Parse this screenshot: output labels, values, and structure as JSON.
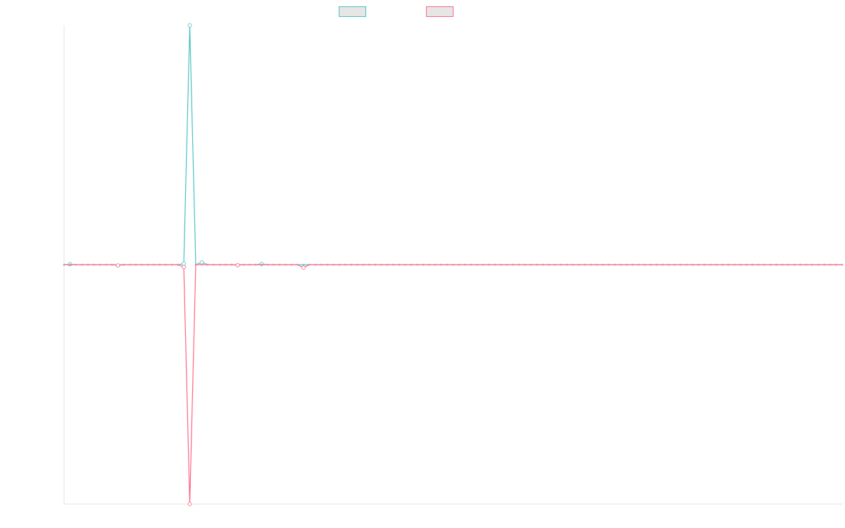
{
  "chart_data": {
    "type": "line",
    "title": "",
    "xlabel": "",
    "ylabel": "",
    "grid": false,
    "legend_position": "top-center",
    "ylim": [
      -1,
      1
    ],
    "x": [
      0,
      1,
      2,
      3,
      4,
      5,
      6,
      7,
      8,
      9,
      10,
      11,
      12,
      13,
      14,
      15,
      16,
      17,
      18,
      19,
      20,
      21,
      22,
      23,
      24,
      25,
      26,
      27,
      28,
      29,
      30,
      31,
      32,
      33,
      34,
      35,
      36,
      37,
      38,
      39,
      40,
      41,
      42,
      43,
      44,
      45,
      46,
      47,
      48,
      49,
      50,
      51,
      52,
      53,
      54,
      55,
      56,
      57,
      58,
      59,
      60,
      61,
      62,
      63,
      64,
      65,
      66,
      67,
      68,
      69,
      70,
      71,
      72,
      73,
      74,
      75,
      76,
      77,
      78,
      79,
      80,
      81,
      82,
      83,
      84,
      85,
      86,
      87,
      88,
      89,
      90,
      91,
      92,
      93,
      94,
      95,
      96,
      97,
      98,
      99,
      100,
      101,
      102,
      103,
      104,
      105,
      106,
      107,
      108,
      109,
      110,
      111,
      112,
      113,
      114,
      115,
      116,
      117,
      118,
      119,
      120,
      121,
      122,
      123,
      124,
      125,
      126,
      127,
      128,
      129,
      130
    ],
    "series": [
      {
        "name": "",
        "color": "#4bc0c0",
        "values": [
          0,
          0.002,
          0,
          0,
          0,
          0,
          0,
          0,
          0,
          0,
          0,
          0,
          0,
          0,
          0,
          0,
          0,
          0,
          0,
          0,
          0.004,
          1.0,
          0,
          0.01,
          0,
          0,
          0,
          0,
          0,
          0,
          0,
          0,
          0,
          0.003,
          0,
          0,
          0,
          0,
          0,
          0,
          0,
          0,
          0,
          0,
          0,
          0,
          0,
          0,
          0,
          0,
          0,
          0,
          0,
          0,
          0,
          0,
          0,
          0,
          0,
          0,
          0,
          0,
          0,
          0,
          0,
          0,
          0,
          0,
          0,
          0,
          0,
          0,
          0,
          0,
          0,
          0,
          0,
          0,
          0,
          0,
          0,
          0,
          0,
          0,
          0,
          0,
          0,
          0,
          0,
          0,
          0,
          0,
          0,
          0,
          0,
          0,
          0,
          0,
          0,
          0,
          0,
          0,
          0,
          0,
          0,
          0,
          0,
          0,
          0,
          0,
          0,
          0,
          0,
          0,
          0,
          0,
          0,
          0,
          0,
          0,
          0,
          0,
          0,
          0,
          0,
          0,
          0,
          0,
          0,
          0,
          0
        ]
      },
      {
        "name": "",
        "color": "#ff6384",
        "values": [
          0,
          0,
          0,
          0,
          0,
          0,
          0,
          0,
          0,
          -0.003,
          0,
          0,
          0,
          0,
          0,
          0,
          0,
          0,
          0,
          0,
          -0.01,
          -1.0,
          0,
          0,
          0,
          0,
          0,
          0,
          0,
          -0.002,
          0,
          0,
          0,
          0,
          0,
          0,
          0,
          0,
          0,
          0,
          -0.012,
          0,
          0,
          0,
          0,
          0,
          0,
          0,
          0,
          0,
          0,
          0,
          0,
          0,
          0,
          0,
          0,
          0,
          0,
          0,
          0,
          0,
          0,
          0,
          0,
          0,
          0,
          0,
          0,
          0,
          0,
          0,
          0,
          0,
          0,
          0,
          0,
          0,
          0,
          0,
          0,
          0,
          0,
          0,
          0,
          0,
          0,
          0,
          0,
          0,
          0,
          0,
          0,
          0,
          0,
          0,
          0,
          0,
          0,
          0,
          0,
          0,
          0,
          0,
          0,
          0,
          0,
          0,
          0,
          0,
          0,
          0,
          0,
          0,
          0,
          0,
          0,
          0,
          0,
          0,
          0,
          0,
          0,
          0,
          0,
          0,
          0,
          0,
          0,
          0,
          0
        ]
      }
    ]
  }
}
